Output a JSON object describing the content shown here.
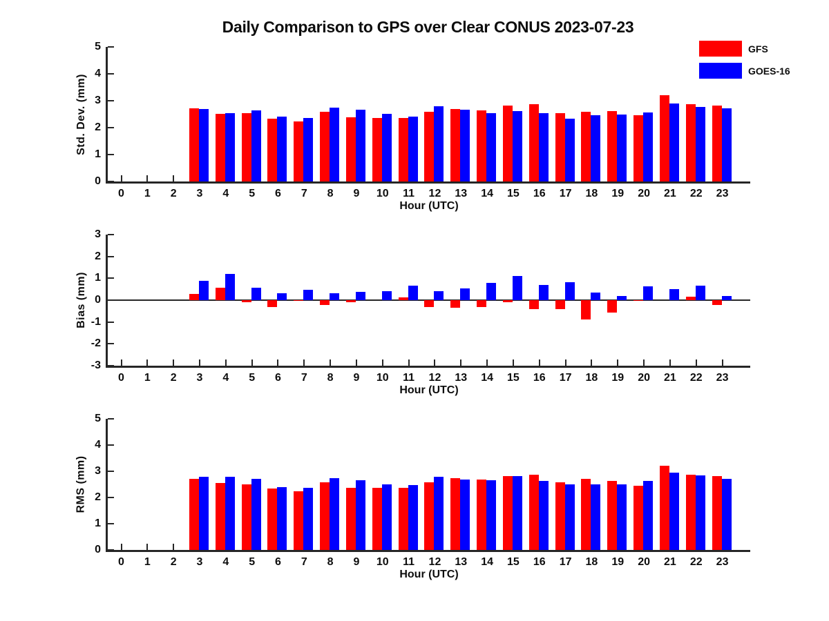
{
  "title": "Daily Comparison to GPS over Clear CONUS 2023-07-23",
  "legend": {
    "position": "top-right",
    "items": [
      {
        "label": "GFS",
        "color": "#ff0000"
      },
      {
        "label": "GOES-16",
        "color": "#0000ff"
      }
    ]
  },
  "colors": {
    "gfs": "#ff0000",
    "goes16": "#0000ff",
    "axis": "#262626",
    "text": "#0d0d0d"
  },
  "chart_data": [
    {
      "type": "bar",
      "ylabel": "Std. Dev. (mm)",
      "xlabel": "Hour (UTC)",
      "ylim": [
        0,
        5
      ],
      "yticks": [
        0,
        1,
        2,
        3,
        4,
        5
      ],
      "grid": false,
      "categories": [
        0,
        1,
        2,
        3,
        4,
        5,
        6,
        7,
        8,
        9,
        10,
        11,
        12,
        13,
        14,
        15,
        16,
        17,
        18,
        19,
        20,
        21,
        22,
        23
      ],
      "series": [
        {
          "name": "GFS",
          "color": "#ff0000",
          "values": [
            null,
            null,
            null,
            2.72,
            2.52,
            2.53,
            2.33,
            2.23,
            2.58,
            2.38,
            2.37,
            2.37,
            2.6,
            2.7,
            2.65,
            2.82,
            2.88,
            2.55,
            2.58,
            2.61,
            2.47,
            3.2,
            2.88,
            2.82
          ]
        },
        {
          "name": "GOES-16",
          "color": "#0000ff",
          "values": [
            null,
            null,
            null,
            2.7,
            2.55,
            2.65,
            2.4,
            2.37,
            2.75,
            2.67,
            2.52,
            2.42,
            2.8,
            2.66,
            2.55,
            2.62,
            2.54,
            2.34,
            2.46,
            2.49,
            2.57,
            2.9,
            2.77,
            2.72
          ]
        }
      ]
    },
    {
      "type": "bar",
      "ylabel": "Bias (mm)",
      "xlabel": "Hour (UTC)",
      "ylim": [
        -3,
        3
      ],
      "yticks": [
        -3,
        -2,
        -1,
        0,
        1,
        2,
        3
      ],
      "grid": false,
      "zero_line": true,
      "categories": [
        0,
        1,
        2,
        3,
        4,
        5,
        6,
        7,
        8,
        9,
        10,
        11,
        12,
        13,
        14,
        15,
        16,
        17,
        18,
        19,
        20,
        21,
        22,
        23
      ],
      "series": [
        {
          "name": "GFS",
          "color": "#ff0000",
          "values": [
            null,
            null,
            null,
            0.27,
            0.57,
            -0.08,
            -0.33,
            -0.02,
            -0.22,
            -0.1,
            0.0,
            0.14,
            -0.3,
            -0.35,
            -0.3,
            -0.08,
            -0.42,
            -0.42,
            -0.87,
            -0.56,
            -0.04,
            0.0,
            0.16,
            -0.21
          ]
        },
        {
          "name": "GOES-16",
          "color": "#0000ff",
          "values": [
            null,
            null,
            null,
            0.87,
            1.19,
            0.57,
            0.33,
            0.47,
            0.33,
            0.37,
            0.42,
            0.66,
            0.41,
            0.53,
            0.78,
            1.1,
            0.69,
            0.82,
            0.35,
            0.19,
            0.63,
            0.51,
            0.65,
            0.18
          ]
        }
      ]
    },
    {
      "type": "bar",
      "ylabel": "RMS (mm)",
      "xlabel": "Hour (UTC)",
      "ylim": [
        0,
        5
      ],
      "yticks": [
        0,
        1,
        2,
        3,
        4,
        5
      ],
      "grid": false,
      "categories": [
        0,
        1,
        2,
        3,
        4,
        5,
        6,
        7,
        8,
        9,
        10,
        11,
        12,
        13,
        14,
        15,
        16,
        17,
        18,
        19,
        20,
        21,
        22,
        23
      ],
      "series": [
        {
          "name": "GFS",
          "color": "#ff0000",
          "values": [
            null,
            null,
            null,
            2.72,
            2.55,
            2.51,
            2.33,
            2.23,
            2.58,
            2.36,
            2.36,
            2.36,
            2.58,
            2.73,
            2.68,
            2.82,
            2.88,
            2.58,
            2.7,
            2.62,
            2.46,
            3.2,
            2.88,
            2.82
          ]
        },
        {
          "name": "GOES-16",
          "color": "#0000ff",
          "values": [
            null,
            null,
            null,
            2.78,
            2.79,
            2.7,
            2.4,
            2.37,
            2.74,
            2.66,
            2.51,
            2.48,
            2.8,
            2.68,
            2.66,
            2.82,
            2.64,
            2.5,
            2.51,
            2.51,
            2.63,
            2.95,
            2.85,
            2.72
          ]
        }
      ]
    }
  ]
}
